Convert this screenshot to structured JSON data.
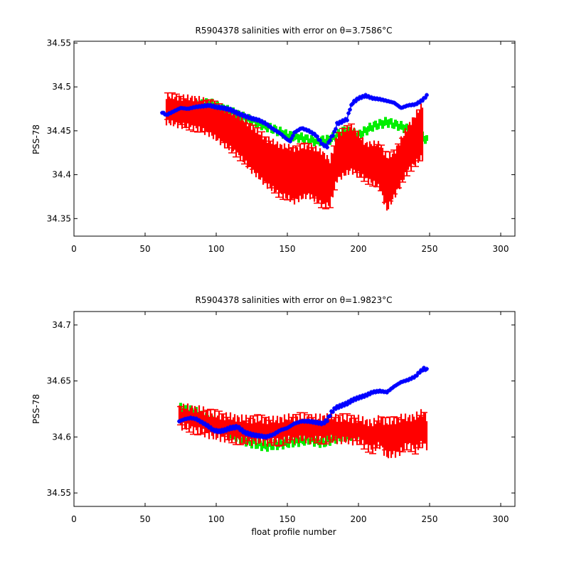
{
  "chart_data": [
    {
      "type": "scatter",
      "title": "R5904378 salinities with error on θ=3.7586°C",
      "xlabel": "",
      "ylabel": "PSS-78",
      "xlim": [
        0,
        310
      ],
      "ylim": [
        34.33,
        34.552
      ],
      "xticks": [
        "0",
        "50",
        "100",
        "150",
        "200",
        "250",
        "300"
      ],
      "yticks": [
        "34.35",
        "34.4",
        "34.45",
        "34.5",
        "34.55"
      ],
      "xtick_values": [
        0,
        50,
        100,
        150,
        200,
        250,
        300
      ],
      "ytick_values": [
        34.35,
        34.4,
        34.45,
        34.5,
        34.55
      ],
      "colors": {
        "error": "#ff0000",
        "green": "#00ee00",
        "blue": "#0000ff"
      },
      "green_x": [
        75,
        95,
        100,
        110,
        120,
        130,
        140,
        150,
        160,
        170,
        180,
        190,
        200,
        210,
        220,
        230,
        240,
        248
      ],
      "green_y": [
        34.475,
        34.482,
        34.478,
        34.472,
        34.465,
        34.458,
        34.452,
        34.445,
        34.442,
        34.438,
        34.44,
        34.45,
        34.445,
        34.455,
        34.46,
        34.455,
        34.448,
        34.44
      ],
      "red_x": [
        65,
        75,
        85,
        95,
        105,
        115,
        125,
        135,
        145,
        155,
        165,
        175,
        180,
        185,
        195,
        205,
        215,
        220,
        225,
        235,
        245
      ],
      "red_y": [
        34.475,
        34.472,
        34.47,
        34.465,
        34.455,
        34.445,
        34.43,
        34.415,
        34.405,
        34.4,
        34.405,
        34.395,
        34.39,
        34.42,
        34.43,
        34.415,
        34.41,
        34.39,
        34.4,
        34.43,
        34.45
      ],
      "red_err": [
        0.015,
        0.016,
        0.017,
        0.018,
        0.02,
        0.022,
        0.025,
        0.026,
        0.028,
        0.03,
        0.028,
        0.03,
        0.025,
        0.025,
        0.025,
        0.02,
        0.025,
        0.03,
        0.025,
        0.025,
        0.03
      ],
      "blue_x": [
        62,
        65,
        70,
        75,
        80,
        85,
        90,
        95,
        100,
        105,
        110,
        115,
        120,
        125,
        130,
        135,
        140,
        145,
        150,
        152,
        155,
        160,
        165,
        170,
        175,
        178,
        180,
        183,
        185,
        188,
        190,
        192,
        194,
        196,
        200,
        205,
        210,
        215,
        220,
        225,
        230,
        235,
        240,
        245,
        248
      ],
      "blue_y": [
        34.471,
        34.468,
        34.472,
        34.476,
        34.475,
        34.477,
        34.478,
        34.479,
        34.477,
        34.476,
        34.474,
        34.47,
        34.467,
        34.464,
        34.462,
        34.458,
        34.452,
        34.447,
        34.44,
        34.438,
        34.448,
        34.453,
        34.45,
        34.445,
        34.434,
        34.432,
        34.44,
        34.448,
        34.458,
        34.46,
        34.462,
        34.463,
        34.475,
        34.482,
        34.487,
        34.49,
        34.487,
        34.486,
        34.484,
        34.482,
        34.476,
        34.479,
        34.48,
        34.485,
        34.49
      ]
    },
    {
      "type": "scatter",
      "title": "R5904378 salinities with error on θ=1.9823°C",
      "xlabel": "float profile number",
      "ylabel": "PSS-78",
      "xlim": [
        0,
        310
      ],
      "ylim": [
        34.538,
        34.712
      ],
      "xticks": [
        "0",
        "50",
        "100",
        "150",
        "200",
        "250",
        "300"
      ],
      "yticks": [
        "34.55",
        "34.6",
        "34.65",
        "34.7"
      ],
      "xtick_values": [
        0,
        50,
        100,
        150,
        200,
        250,
        300
      ],
      "ytick_values": [
        34.55,
        34.6,
        34.65,
        34.7
      ],
      "colors": {
        "error": "#ff0000",
        "green": "#00ee00",
        "blue": "#0000ff"
      },
      "green_x": [
        75,
        85,
        95,
        105,
        115,
        125,
        135,
        145,
        155,
        165,
        175,
        185,
        195,
        205,
        215,
        225,
        235,
        245
      ],
      "green_y": [
        34.625,
        34.622,
        34.615,
        34.608,
        34.6,
        34.595,
        34.592,
        34.594,
        34.596,
        34.598,
        34.595,
        34.6,
        34.602,
        34.605,
        34.6,
        34.6,
        34.605,
        34.61
      ],
      "red_x": [
        74,
        80,
        90,
        100,
        110,
        120,
        130,
        140,
        150,
        160,
        170,
        180,
        190,
        200,
        210,
        215,
        220,
        225,
        230,
        235,
        240,
        245,
        248
      ],
      "red_y": [
        34.618,
        34.617,
        34.614,
        34.61,
        34.608,
        34.606,
        34.606,
        34.605,
        34.607,
        34.608,
        34.607,
        34.608,
        34.607,
        34.606,
        34.6,
        34.605,
        34.598,
        34.6,
        34.602,
        34.605,
        34.603,
        34.608,
        34.605
      ],
      "red_err": [
        0.008,
        0.009,
        0.01,
        0.01,
        0.01,
        0.01,
        0.01,
        0.01,
        0.01,
        0.01,
        0.01,
        0.01,
        0.01,
        0.01,
        0.012,
        0.012,
        0.015,
        0.015,
        0.015,
        0.012,
        0.015,
        0.014,
        0.013
      ],
      "blue_x": [
        74,
        78,
        82,
        86,
        90,
        94,
        98,
        102,
        106,
        110,
        115,
        120,
        125,
        130,
        135,
        140,
        145,
        150,
        155,
        160,
        165,
        170,
        175,
        178,
        181,
        184,
        188,
        192,
        196,
        200,
        205,
        210,
        215,
        220,
        225,
        230,
        235,
        240,
        243,
        246,
        248
      ],
      "blue_y": [
        34.614,
        34.616,
        34.617,
        34.616,
        34.613,
        34.61,
        34.606,
        34.605,
        34.606,
        34.608,
        34.609,
        34.604,
        34.602,
        34.601,
        34.6,
        34.602,
        34.606,
        34.608,
        34.612,
        34.614,
        34.614,
        34.613,
        34.612,
        34.615,
        34.622,
        34.626,
        34.628,
        34.63,
        34.633,
        34.635,
        34.637,
        34.64,
        34.641,
        34.64,
        34.645,
        34.649,
        34.651,
        34.654,
        34.658,
        34.661,
        34.66
      ]
    }
  ]
}
